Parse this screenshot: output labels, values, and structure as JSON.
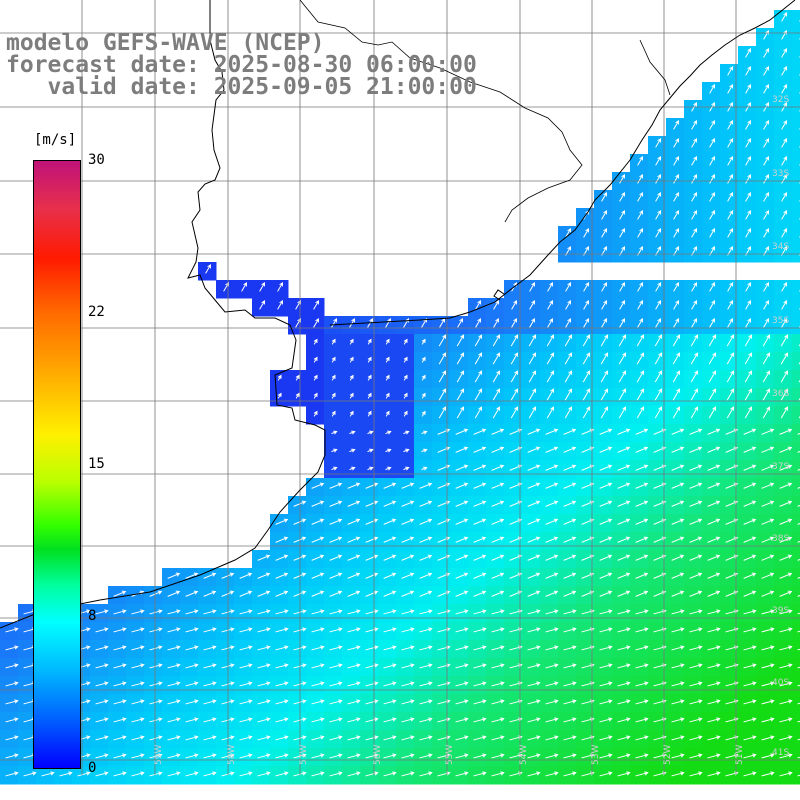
{
  "title": {
    "line1": "modelo GEFS-WAVE (NCEP)",
    "line2": "forecast date: 2025-08-30 06:00:00",
    "line3": "   valid date: 2025-09-05 21:00:00"
  },
  "colorbar": {
    "unit": "[m/s]",
    "ticks": [
      "30",
      "22",
      "15",
      "8",
      "0"
    ],
    "tick_values": [
      30,
      22,
      15,
      8,
      0
    ],
    "range": [
      0,
      30
    ]
  },
  "grid": {
    "lat_labels": [
      "32S",
      "33S",
      "34S",
      "35S",
      "36S",
      "37S",
      "38S",
      "39S",
      "40S",
      "41S"
    ],
    "lon_labels": [
      "59W",
      "58W",
      "57W",
      "56W",
      "55W",
      "54W",
      "53W",
      "52W",
      "51W"
    ]
  },
  "colors": {
    "calm": "#1a3cf0",
    "light": "#1a8cf8",
    "moderate": "#00f0f0",
    "strong": "#10e010",
    "land": "#ffffff",
    "grid": "#777777",
    "coast": "#000000",
    "arrow": "#ffffff"
  }
}
